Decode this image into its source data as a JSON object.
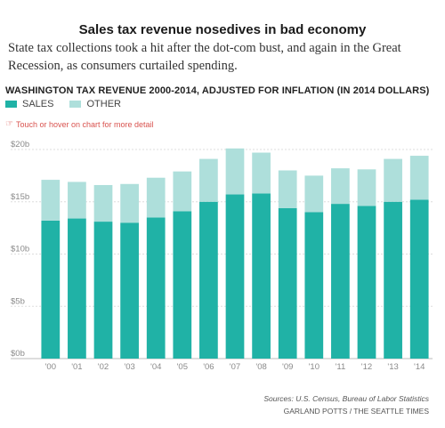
{
  "title": "Sales tax revenue nosedives in bad economy",
  "subtitle": "State tax collections took a hit after the dot-com bust, and again in the Great Recession, as consumers curtailed spending.",
  "chart_header": "WASHINGTON TAX REVENUE 2000-2014, ADJUSTED FOR INFLATION (IN 2014 DOLLARS)",
  "hint": "Touch or hover on chart for more detail",
  "hint_icon": "pointing-hand-icon",
  "source": "Sources: U.S. Census, Bureau of Labor Statistics",
  "credit": "GARLAND POTTS / THE SEATTLE TIMES",
  "colors": {
    "sales": "#20b2a6",
    "other": "#aedfdb",
    "grid": "#dddddd",
    "tick": "#8a8a8a",
    "hint": "#d9534f"
  },
  "chart_data": {
    "type": "bar",
    "stacked": true,
    "categories": [
      "'00",
      "'01",
      "'02",
      "'03",
      "'04",
      "'05",
      "'06",
      "'07",
      "'08",
      "'09",
      "'10",
      "'11",
      "'12",
      "'13",
      "'14"
    ],
    "series": [
      {
        "name": "SALES",
        "values": [
          13.2,
          13.4,
          13.1,
          13.0,
          13.5,
          14.1,
          15.0,
          15.7,
          15.8,
          14.4,
          14.0,
          14.8,
          14.6,
          15.0,
          15.2
        ]
      },
      {
        "name": "OTHER",
        "values": [
          3.9,
          3.5,
          3.5,
          3.7,
          3.8,
          3.8,
          4.1,
          4.4,
          3.9,
          3.6,
          3.5,
          3.4,
          3.5,
          4.1,
          4.2
        ]
      }
    ],
    "y_ticks": [
      "$0b",
      "$5b",
      "$10b",
      "$15b",
      "$20b"
    ],
    "ylim": [
      0,
      20
    ],
    "legend": "top-left",
    "grid": true
  }
}
